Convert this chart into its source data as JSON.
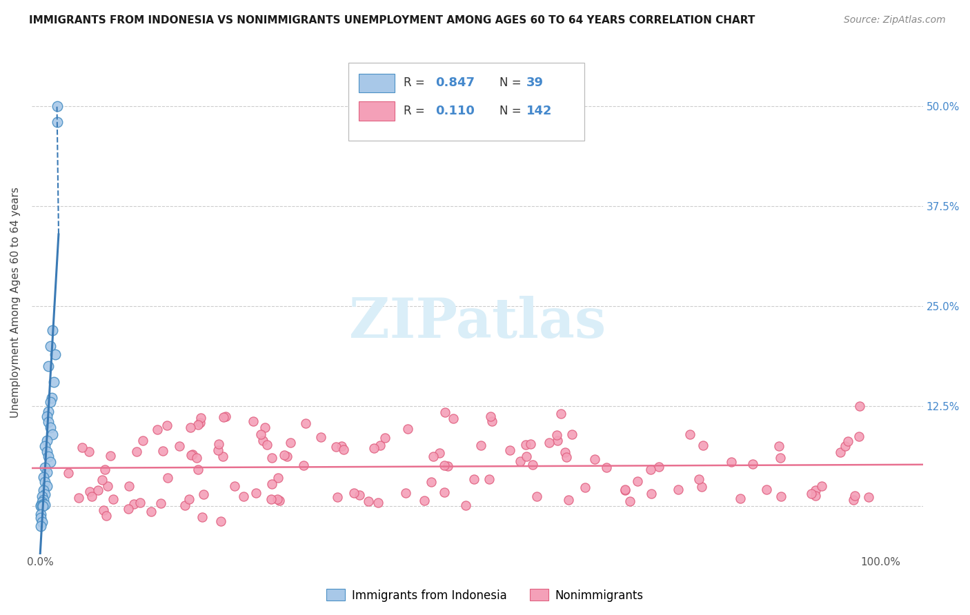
{
  "title": "IMMIGRANTS FROM INDONESIA VS NONIMMIGRANTS UNEMPLOYMENT AMONG AGES 60 TO 64 YEARS CORRELATION CHART",
  "source": "Source: ZipAtlas.com",
  "ylabel": "Unemployment Among Ages 60 to 64 years",
  "xlim": [
    -0.01,
    1.05
  ],
  "ylim": [
    -0.06,
    0.57
  ],
  "xticks": [
    0.0,
    0.25,
    0.5,
    0.75,
    1.0
  ],
  "xticklabels": [
    "0.0%",
    "",
    "",
    "",
    "100.0%"
  ],
  "ytick_values": [
    0.0,
    0.125,
    0.25,
    0.375,
    0.5
  ],
  "ytick_labels_right": [
    "",
    "12.5%",
    "25.0%",
    "37.5%",
    "50.0%"
  ],
  "blue_R": 0.847,
  "blue_N": 39,
  "pink_R": 0.11,
  "pink_N": 142,
  "blue_color": "#a8c8e8",
  "pink_color": "#f4a0b8",
  "blue_edge_color": "#4a90c4",
  "pink_edge_color": "#e06080",
  "blue_line_color": "#3a7ab5",
  "pink_line_color": "#e87090",
  "watermark_color": "#daeef8",
  "legend_labels": [
    "Immigrants from Indonesia",
    "Nonimmigrants"
  ],
  "title_fontsize": 11,
  "source_fontsize": 10,
  "tick_fontsize": 11,
  "right_tick_color": "#4488cc"
}
